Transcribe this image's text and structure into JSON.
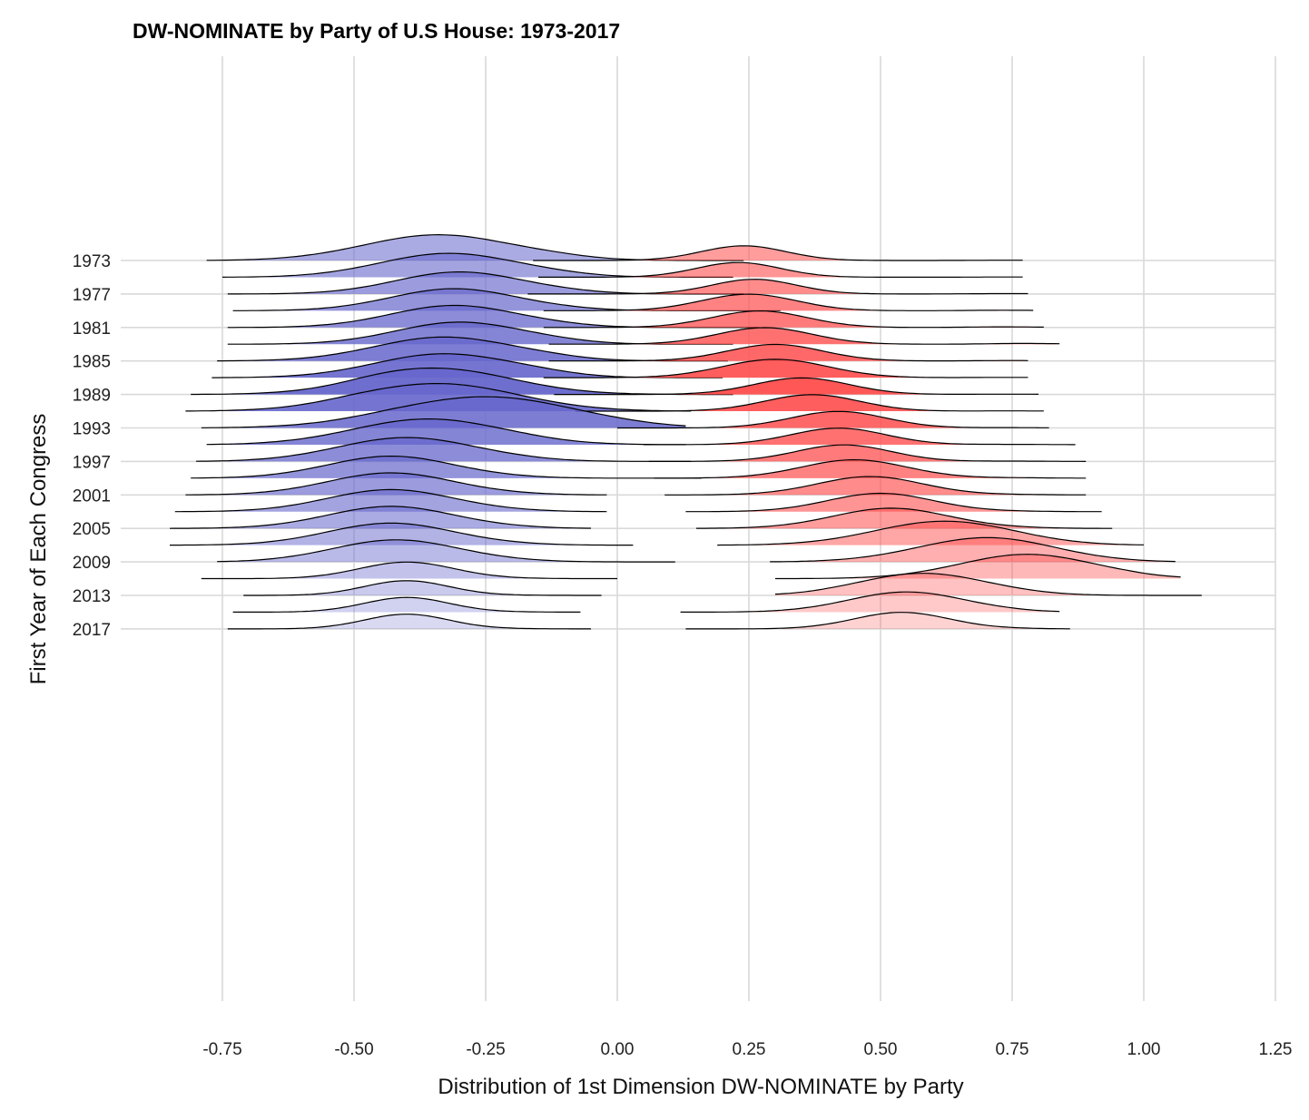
{
  "chart_data": {
    "type": "ridgeline",
    "title": "DW-NOMINATE by Party of U.S House: 1973-2017",
    "xlabel": "Distribution of 1st Dimension DW-NOMINATE by Party",
    "ylabel": "First Year of Each Congress",
    "xlim": [
      -0.95,
      1.25
    ],
    "x_ticks": [
      "-0.75",
      "-0.50",
      "-0.25",
      "0.00",
      "0.25",
      "0.50",
      "0.75",
      "1.00",
      "1.25"
    ],
    "y_ticks": [
      "1973",
      "1977",
      "1981",
      "1985",
      "1989",
      "1993",
      "1997",
      "2001",
      "2005",
      "2009",
      "2013",
      "2017"
    ],
    "years": [
      1973,
      1975,
      1977,
      1979,
      1981,
      1983,
      1985,
      1987,
      1989,
      1991,
      1993,
      1995,
      1997,
      1999,
      2001,
      2003,
      2005,
      2007,
      2009,
      2011,
      2013,
      2015,
      2017
    ],
    "grid": true,
    "legend": "none",
    "colors": {
      "democrat": "#6666cc",
      "republican": "#ff4d4d"
    },
    "series": [
      {
        "party": "democrat",
        "peak": [
          -0.34,
          -0.32,
          -0.3,
          -0.31,
          -0.31,
          -0.3,
          -0.33,
          -0.33,
          -0.34,
          -0.34,
          -0.25,
          -0.36,
          -0.4,
          -0.43,
          -0.43,
          -0.43,
          -0.43,
          -0.43,
          -0.42,
          -0.4,
          -0.4,
          -0.4,
          -0.4
        ],
        "spread": [
          0.14,
          0.13,
          0.12,
          0.12,
          0.12,
          0.12,
          0.13,
          0.13,
          0.14,
          0.15,
          0.17,
          0.14,
          0.13,
          0.12,
          0.12,
          0.12,
          0.12,
          0.12,
          0.12,
          0.09,
          0.08,
          0.08,
          0.08
        ],
        "range": [
          [
            -0.78,
            0.24
          ],
          [
            -0.75,
            0.22
          ],
          [
            -0.74,
            0.24
          ],
          [
            -0.73,
            0.31
          ],
          [
            -0.74,
            0.27
          ],
          [
            -0.74,
            0.22
          ],
          [
            -0.76,
            0.21
          ],
          [
            -0.77,
            0.2
          ],
          [
            -0.81,
            0.22
          ],
          [
            -0.82,
            0.14
          ],
          [
            -0.79,
            0.13
          ],
          [
            -0.78,
            0.13
          ],
          [
            -0.8,
            0.14
          ],
          [
            -0.81,
            0.16
          ],
          [
            -0.82,
            -0.02
          ],
          [
            -0.84,
            -0.02
          ],
          [
            -0.85,
            -0.05
          ],
          [
            -0.85,
            0.03
          ],
          [
            -0.76,
            0.11
          ],
          [
            -0.79,
            0.0
          ],
          [
            -0.71,
            -0.03
          ],
          [
            -0.73,
            -0.07
          ],
          [
            -0.74,
            -0.05
          ]
        ],
        "shoulder": [
          [
            -0.12,
            0.06
          ],
          [
            -0.12,
            0.05
          ],
          [
            -0.1,
            0.05
          ],
          [
            -0.1,
            0.04
          ],
          [
            -0.12,
            0.05
          ],
          [
            -0.12,
            0.06
          ],
          [
            -0.14,
            0.07
          ],
          [
            -0.15,
            0.08
          ],
          [
            -0.45,
            0.08
          ],
          [
            -0.5,
            0.05
          ],
          [
            -0.45,
            0.03
          ],
          [
            -0.18,
            0.03
          ],
          [
            -0.2,
            0.03
          ],
          [
            -0.2,
            0.02
          ],
          [
            -0.2,
            0.02
          ],
          [
            -0.2,
            0.02
          ],
          [
            -0.2,
            0.02
          ],
          [
            -0.2,
            0.02
          ],
          [
            -0.2,
            0.02
          ],
          [
            -0.2,
            0.01
          ],
          [
            -0.2,
            0.01
          ],
          [
            -0.2,
            0.01
          ],
          [
            -0.2,
            0.01
          ]
        ]
      },
      {
        "party": "republican",
        "peak": [
          0.24,
          0.23,
          0.26,
          0.25,
          0.27,
          0.28,
          0.3,
          0.3,
          0.35,
          0.37,
          0.42,
          0.42,
          0.43,
          0.45,
          0.48,
          0.5,
          0.52,
          0.62,
          0.7,
          0.78,
          0.58,
          0.55,
          0.54
        ],
        "spread": [
          0.08,
          0.08,
          0.08,
          0.09,
          0.09,
          0.09,
          0.09,
          0.1,
          0.09,
          0.09,
          0.09,
          0.09,
          0.09,
          0.1,
          0.1,
          0.1,
          0.11,
          0.13,
          0.13,
          0.13,
          0.12,
          0.11,
          0.09
        ],
        "range": [
          [
            -0.16,
            0.77
          ],
          [
            -0.15,
            0.77
          ],
          [
            -0.17,
            0.78
          ],
          [
            -0.14,
            0.79
          ],
          [
            -0.14,
            0.81
          ],
          [
            -0.13,
            0.84
          ],
          [
            -0.13,
            0.78
          ],
          [
            -0.14,
            0.78
          ],
          [
            -0.12,
            0.8
          ],
          [
            -0.08,
            0.81
          ],
          [
            0.0,
            0.82
          ],
          [
            0.05,
            0.87
          ],
          [
            0.06,
            0.89
          ],
          [
            0.07,
            0.89
          ],
          [
            0.09,
            0.89
          ],
          [
            0.13,
            0.92
          ],
          [
            0.15,
            0.94
          ],
          [
            0.19,
            1.0
          ],
          [
            0.29,
            1.06
          ],
          [
            0.3,
            1.07
          ],
          [
            0.3,
            1.11
          ],
          [
            0.12,
            0.84
          ],
          [
            0.13,
            0.86
          ]
        ],
        "shoulder": [
          [
            0.75,
            0.02
          ],
          [
            0.76,
            0.02
          ],
          [
            0.75,
            0.03
          ],
          [
            0.74,
            0.03
          ],
          [
            0.74,
            0.04
          ],
          [
            0.78,
            0.05
          ],
          [
            0.76,
            0.03
          ],
          [
            0.75,
            0.02
          ],
          [
            0.75,
            0.02
          ],
          [
            0.75,
            0.02
          ],
          [
            0.75,
            0.02
          ],
          [
            0.75,
            0.02
          ],
          [
            0.75,
            0.02
          ],
          [
            0.75,
            0.02
          ],
          [
            0.75,
            0.02
          ],
          [
            0.75,
            0.02
          ],
          [
            0.75,
            0.02
          ],
          [
            0.75,
            0.02
          ],
          [
            0.75,
            0.02
          ],
          [
            0.75,
            0.02
          ],
          [
            0.75,
            0.02
          ],
          [
            0.75,
            0.02
          ],
          [
            0.75,
            0.02
          ]
        ]
      }
    ]
  }
}
